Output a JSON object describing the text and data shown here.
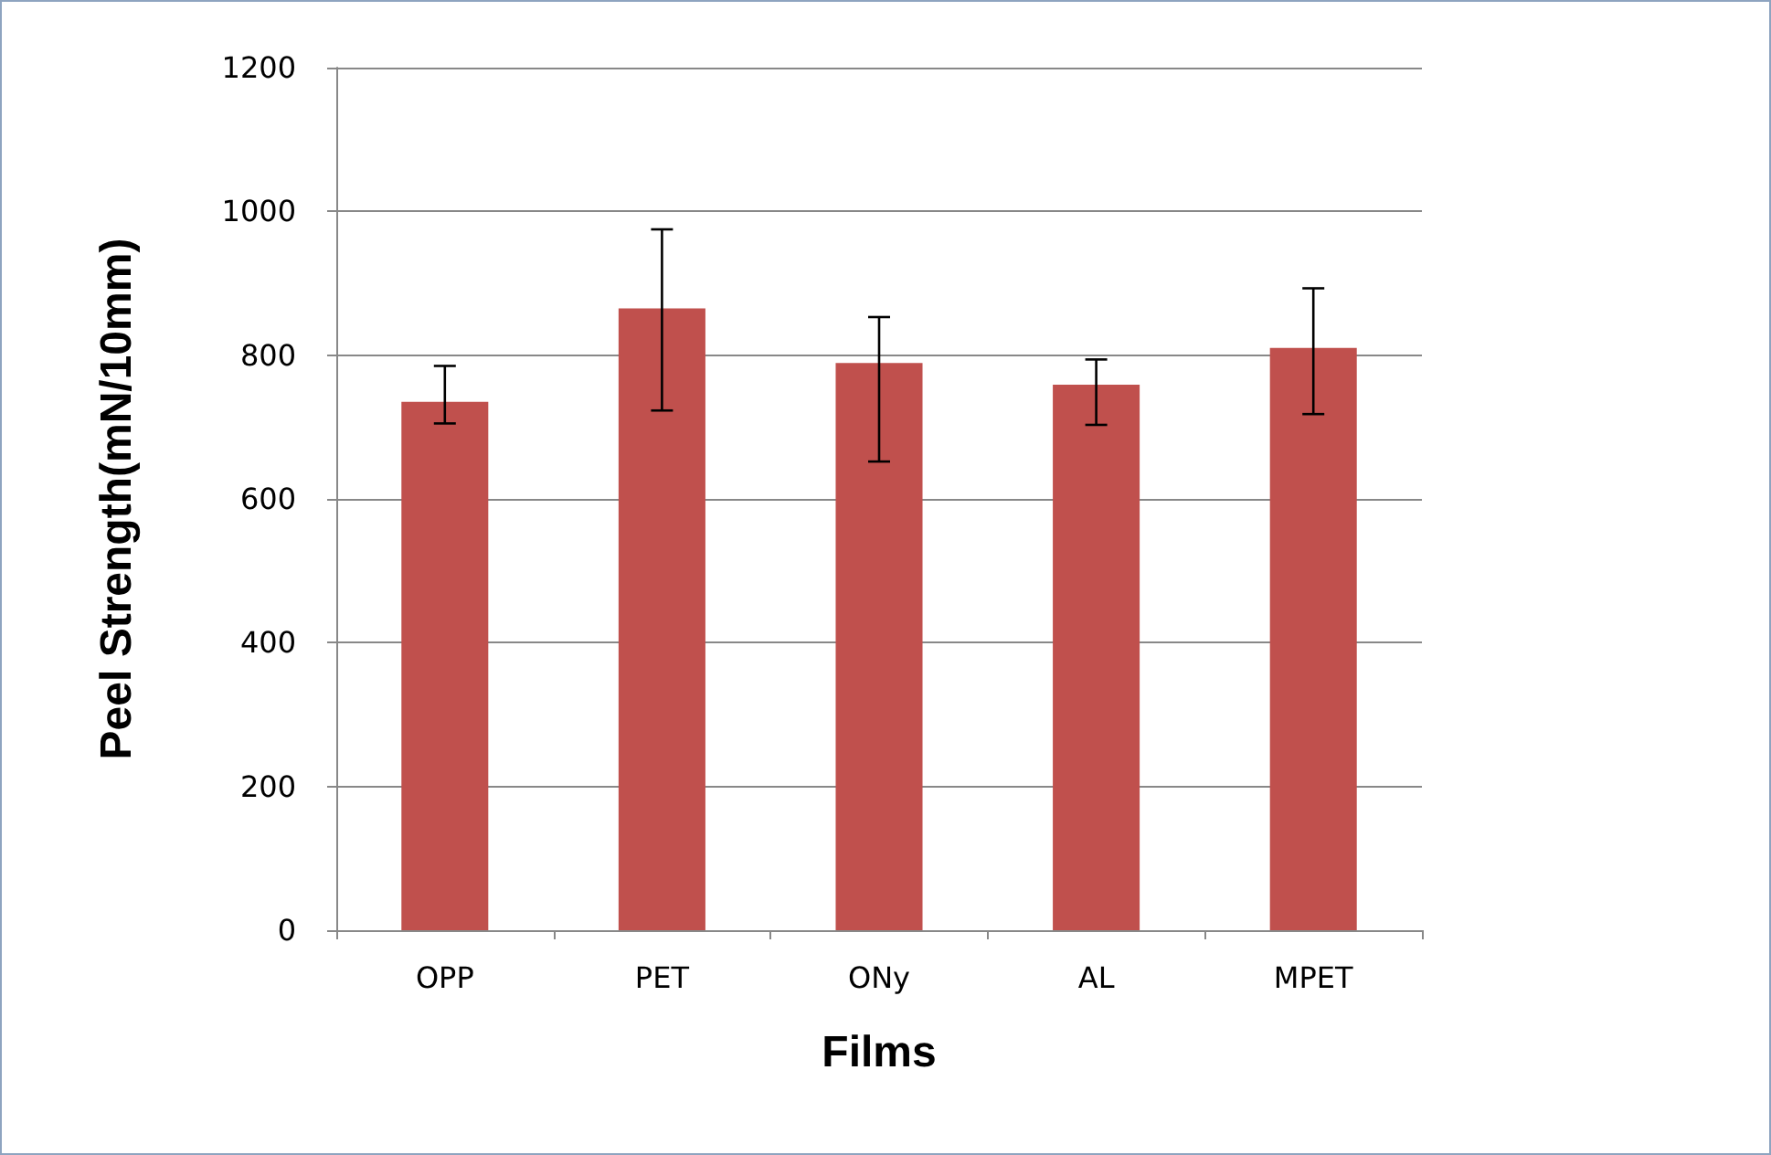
{
  "chart_data": {
    "type": "bar",
    "xlabel": "Films",
    "ylabel": "Peel Strength(mN/10mm)",
    "categories": [
      "OPP",
      "PET",
      "ONy",
      "AL",
      "MPET"
    ],
    "series": [
      {
        "color": "#c0504d",
        "values": [
          735,
          865,
          789,
          759,
          810
        ],
        "errors": [
          [
            705,
            785
          ],
          [
            723,
            975
          ],
          [
            652,
            853
          ],
          [
            703,
            794
          ],
          [
            718,
            893
          ]
        ]
      }
    ],
    "ylim": [
      0,
      1200
    ],
    "yticks": [
      0,
      200,
      400,
      600,
      800,
      1000,
      1200
    ],
    "grid": "y"
  }
}
